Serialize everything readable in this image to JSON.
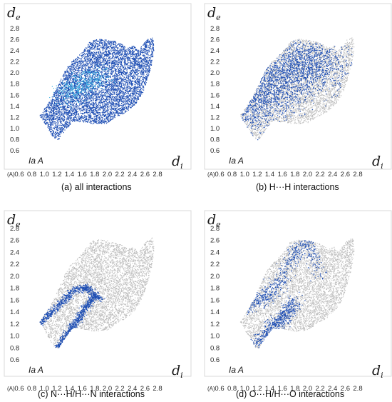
{
  "figure": {
    "unit_label": "(A)",
    "compound_label": "Ia A"
  },
  "chart_data": [
    {
      "type": "scatter",
      "panel": "(a)",
      "caption": "(a)  all interactions",
      "xlabel_main": "d",
      "xlabel_sub": "i",
      "ylabel_main": "d",
      "ylabel_sub": "e",
      "xlim": [
        0.4,
        3.0
      ],
      "ylim": [
        0.4,
        3.0
      ],
      "x_ticks": [
        "0.6",
        "0.8",
        "1.0",
        "1.2",
        "1.4",
        "1.6",
        "1.8",
        "2.0",
        "2.2",
        "2.4",
        "2.6",
        "2.8"
      ],
      "y_ticks": [
        "0.6",
        "0.8",
        "1.0",
        "1.2",
        "1.4",
        "1.6",
        "1.8",
        "2.0",
        "2.2",
        "2.4",
        "2.6",
        "2.8"
      ],
      "grid": false,
      "background_envelope_color": "#bdbdbd",
      "highlight_color": "#1f4fb4",
      "core_color": "#29a9e0",
      "highlight_share_percent": 100,
      "series": [
        {
          "x": [
            1.0,
            1.2,
            1.4,
            1.6,
            1.8,
            2.0,
            2.2,
            2.4,
            2.6,
            2.7
          ],
          "y": [
            1.2,
            1.5,
            1.9,
            2.2,
            2.4,
            2.5,
            2.3,
            2.2,
            2.5,
            2.6
          ]
        }
      ]
    },
    {
      "type": "scatter",
      "panel": "(b)",
      "caption": "(b)  H···H interactions",
      "xlabel_main": "d",
      "xlabel_sub": "i",
      "ylabel_main": "d",
      "ylabel_sub": "e",
      "xlim": [
        0.4,
        3.0
      ],
      "ylim": [
        0.4,
        3.0
      ],
      "x_ticks": [
        "0.6",
        "0.8",
        "1.0",
        "1.2",
        "1.4",
        "1.6",
        "1.8",
        "2.0",
        "2.2",
        "2.4",
        "2.6",
        "2.8"
      ],
      "y_ticks": [
        "0.6",
        "0.8",
        "1.0",
        "1.2",
        "1.4",
        "1.6",
        "1.8",
        "2.0",
        "2.2",
        "2.4",
        "2.6",
        "2.8"
      ],
      "grid": false,
      "background_envelope_color": "#bdbdbd",
      "highlight_color": "#1f4fb4",
      "highlight_share_percent": 55,
      "series": [
        {
          "x": [
            1.0,
            1.1,
            1.3,
            1.5,
            1.7,
            1.9,
            2.1,
            2.3
          ],
          "y": [
            1.3,
            1.4,
            1.6,
            1.9,
            2.0,
            2.2,
            2.2,
            2.1
          ]
        }
      ]
    },
    {
      "type": "scatter",
      "panel": "(c)",
      "caption": "(c)  N···H/H···N interactions",
      "xlabel_main": "d",
      "xlabel_sub": "i",
      "ylabel_main": "d",
      "ylabel_sub": "e",
      "xlim": [
        0.4,
        3.0
      ],
      "ylim": [
        0.4,
        3.0
      ],
      "x_ticks": [
        "0.6",
        "0.8",
        "1.0",
        "1.2",
        "1.4",
        "1.6",
        "1.8",
        "2.0",
        "2.2",
        "2.4",
        "2.6",
        "2.8"
      ],
      "y_ticks": [
        "0.6",
        "0.8",
        "1.0",
        "1.2",
        "1.4",
        "1.6",
        "1.8",
        "2.0",
        "2.2",
        "2.4",
        "2.6",
        "2.8"
      ],
      "grid": false,
      "background_envelope_color": "#bdbdbd",
      "highlight_color": "#1f4fb4",
      "highlight_share_percent": 12,
      "series": [
        {
          "x": [
            0.9,
            1.1,
            1.3,
            1.5,
            1.7,
            1.9
          ],
          "y": [
            1.2,
            1.4,
            1.6,
            1.8,
            1.8,
            1.6
          ]
        },
        {
          "x": [
            1.2,
            1.4,
            1.6,
            1.8
          ],
          "y": [
            0.8,
            1.1,
            1.4,
            1.7
          ]
        }
      ]
    },
    {
      "type": "scatter",
      "panel": "(d)",
      "caption": "(d)  O···H/H···O interactions",
      "xlabel_main": "d",
      "xlabel_sub": "i",
      "ylabel_main": "d",
      "ylabel_sub": "e",
      "xlim": [
        0.4,
        3.0
      ],
      "ylim": [
        0.4,
        3.0
      ],
      "x_ticks": [
        "0.6",
        "0.8",
        "1.0",
        "1.2",
        "1.4",
        "1.6",
        "1.8",
        "2.0",
        "2.2",
        "2.4",
        "2.6",
        "2.8"
      ],
      "y_ticks": [
        "0.6",
        "0.8",
        "1.0",
        "1.2",
        "1.4",
        "1.6",
        "1.8",
        "2.0",
        "2.2",
        "2.4",
        "2.6",
        "2.8"
      ],
      "grid": false,
      "background_envelope_color": "#bdbdbd",
      "highlight_color": "#1f4fb4",
      "highlight_share_percent": 30,
      "series": [
        {
          "x": [
            1.0,
            1.2,
            1.4,
            1.6,
            1.8,
            2.0,
            2.2
          ],
          "y": [
            1.5,
            1.6,
            1.7,
            2.0,
            2.4,
            2.6,
            2.0
          ]
        },
        {
          "x": [
            1.2,
            1.4,
            1.6,
            1.8
          ],
          "y": [
            0.8,
            1.1,
            1.3,
            1.6
          ]
        }
      ]
    }
  ]
}
